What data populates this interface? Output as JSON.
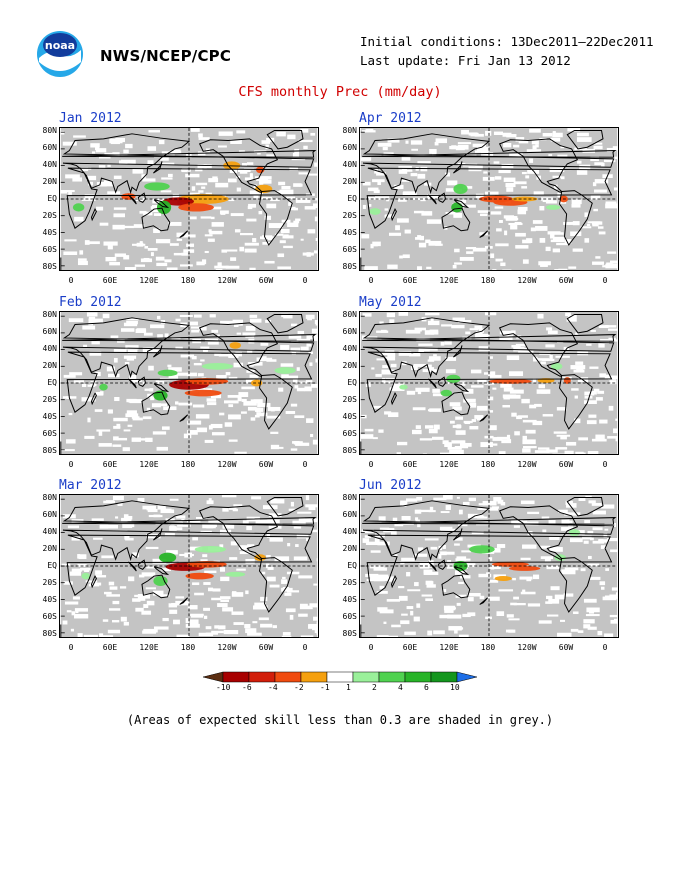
{
  "header": {
    "agency": "NWS/NCEP/CPC",
    "initial_conditions": "Initial conditions: 13Dec2011–22Dec2011",
    "last_update": "Last update: Fri Jan 13 2012",
    "title": "CFS monthly Prec (mm/day)"
  },
  "panels": [
    {
      "key": "jan",
      "title": "Jan 2012"
    },
    {
      "key": "apr",
      "title": "Apr 2012"
    },
    {
      "key": "feb",
      "title": "Feb 2012"
    },
    {
      "key": "may",
      "title": "May 2012"
    },
    {
      "key": "mar",
      "title": "Mar 2012"
    },
    {
      "key": "jun",
      "title": "Jun 2012"
    }
  ],
  "axes": {
    "lat_labels": [
      "80N",
      "60N",
      "40N",
      "20N",
      "EQ",
      "20S",
      "40S",
      "60S",
      "80S"
    ],
    "lon_labels": [
      "0",
      "60E",
      "120E",
      "180",
      "120W",
      "60W",
      "0"
    ]
  },
  "colorbar": {
    "labels": [
      "-10",
      "-6",
      "-4",
      "-2",
      "-1",
      "1",
      "2",
      "4",
      "6",
      "10"
    ],
    "colors": [
      "#5c2e12",
      "#a80000",
      "#d21e0a",
      "#f04b0f",
      "#f5a00f",
      "#ffffff",
      "#9af09a",
      "#50d250",
      "#28b428",
      "#14961e",
      "#1e6ee6"
    ]
  },
  "note": "(Areas of expected skill less than 0.3 are shaded in grey.)"
}
